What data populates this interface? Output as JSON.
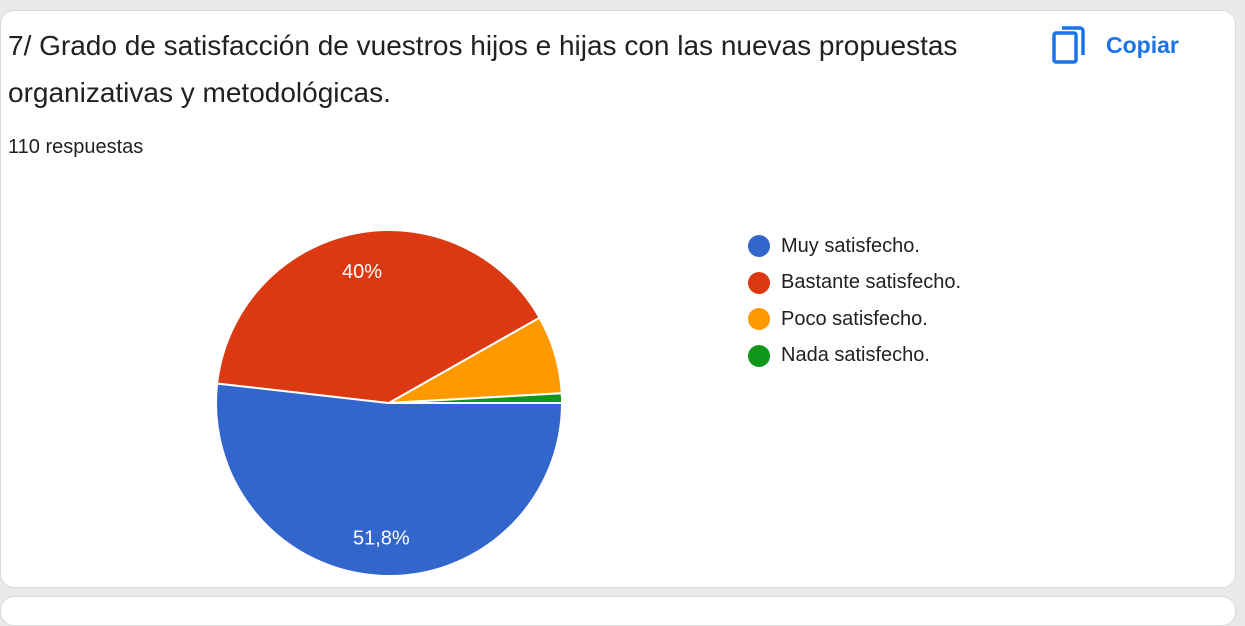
{
  "question": {
    "title": "7/ Grado de satisfacción de vuestros hijos e hijas con las nuevas propuestas organizativas y metodológicas.",
    "response_count": "110 respuestas"
  },
  "copy_button": {
    "label": "Copiar",
    "icon": "copy-icon",
    "color": "#1a73e8"
  },
  "chart_data": {
    "type": "pie",
    "title": "",
    "legend_position": "right",
    "start_angle_deg": 90,
    "series": [
      {
        "name": "Muy satisfecho.",
        "value": 51.8,
        "label": "51,8%",
        "color": "#3366cc"
      },
      {
        "name": "Bastante satisfecho.",
        "value": 40.0,
        "label": "40%",
        "color": "#dc3912"
      },
      {
        "name": "Poco satisfecho.",
        "value": 7.3,
        "label": "",
        "color": "#ff9900"
      },
      {
        "name": "Nada satisfecho.",
        "value": 0.9,
        "label": "",
        "color": "#109618"
      }
    ]
  }
}
